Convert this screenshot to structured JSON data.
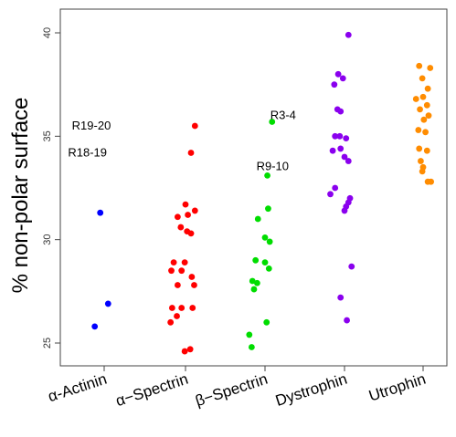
{
  "chart_data": {
    "type": "scatter",
    "title": "",
    "xlabel": "",
    "ylabel": "% non-polar surface",
    "ylim": [
      24,
      41
    ],
    "yticks": [
      "25",
      "30",
      "35",
      "40"
    ],
    "grid": false,
    "categories": [
      "α-Actinin",
      "α−Spectrin",
      "β−Spectrin",
      "Dystrophin",
      "Utrophin"
    ],
    "series": [
      {
        "color": "#0000ff",
        "points": [
          {
            "x": -0.05,
            "y": 31.3
          },
          {
            "x": 0.05,
            "y": 26.9
          },
          {
            "x": -0.12,
            "y": 25.8
          }
        ]
      },
      {
        "color": "#ff0000",
        "points": [
          {
            "x": 0.12,
            "y": 35.5
          },
          {
            "x": 0.07,
            "y": 34.2
          },
          {
            "x": 0.0,
            "y": 31.7
          },
          {
            "x": 0.12,
            "y": 31.4
          },
          {
            "x": -0.1,
            "y": 31.1
          },
          {
            "x": 0.03,
            "y": 31.2
          },
          {
            "x": -0.06,
            "y": 30.6
          },
          {
            "x": 0.02,
            "y": 30.4
          },
          {
            "x": 0.07,
            "y": 30.3
          },
          {
            "x": -0.15,
            "y": 28.9
          },
          {
            "x": -0.01,
            "y": 28.9
          },
          {
            "x": -0.18,
            "y": 28.5
          },
          {
            "x": -0.05,
            "y": 28.5
          },
          {
            "x": 0.08,
            "y": 28.2
          },
          {
            "x": -0.1,
            "y": 27.8
          },
          {
            "x": 0.11,
            "y": 27.8
          },
          {
            "x": -0.17,
            "y": 26.7
          },
          {
            "x": -0.05,
            "y": 26.7
          },
          {
            "x": 0.09,
            "y": 26.7
          },
          {
            "x": -0.11,
            "y": 26.3
          },
          {
            "x": -0.19,
            "y": 26.0
          },
          {
            "x": 0.06,
            "y": 24.7
          },
          {
            "x": -0.01,
            "y": 24.6
          }
        ]
      },
      {
        "color": "#00dd00",
        "points": [
          {
            "x": 0.09,
            "y": 35.7
          },
          {
            "x": 0.03,
            "y": 33.1
          },
          {
            "x": 0.04,
            "y": 31.5
          },
          {
            "x": -0.09,
            "y": 31.0
          },
          {
            "x": 0.0,
            "y": 30.1
          },
          {
            "x": 0.06,
            "y": 29.9
          },
          {
            "x": -0.12,
            "y": 29.0
          },
          {
            "x": 0.0,
            "y": 28.9
          },
          {
            "x": 0.05,
            "y": 28.6
          },
          {
            "x": -0.16,
            "y": 28.0
          },
          {
            "x": -0.1,
            "y": 27.9
          },
          {
            "x": -0.14,
            "y": 27.6
          },
          {
            "x": 0.02,
            "y": 26.0
          },
          {
            "x": -0.2,
            "y": 25.4
          },
          {
            "x": -0.17,
            "y": 24.8
          }
        ]
      },
      {
        "color": "#8a00ee",
        "points": [
          {
            "x": 0.05,
            "y": 39.9
          },
          {
            "x": -0.08,
            "y": 38.0
          },
          {
            "x": -0.02,
            "y": 37.8
          },
          {
            "x": -0.13,
            "y": 37.5
          },
          {
            "x": -0.09,
            "y": 36.3
          },
          {
            "x": -0.05,
            "y": 36.2
          },
          {
            "x": -0.12,
            "y": 35.0
          },
          {
            "x": -0.06,
            "y": 35.0
          },
          {
            "x": 0.02,
            "y": 34.9
          },
          {
            "x": -0.15,
            "y": 34.3
          },
          {
            "x": -0.05,
            "y": 34.4
          },
          {
            "x": 0.0,
            "y": 34.0
          },
          {
            "x": 0.05,
            "y": 33.8
          },
          {
            "x": -0.12,
            "y": 32.5
          },
          {
            "x": -0.18,
            "y": 32.2
          },
          {
            "x": 0.07,
            "y": 32.0
          },
          {
            "x": 0.05,
            "y": 31.8
          },
          {
            "x": 0.02,
            "y": 31.6
          },
          {
            "x": 0.0,
            "y": 31.4
          },
          {
            "x": 0.09,
            "y": 28.7
          },
          {
            "x": -0.05,
            "y": 27.2
          },
          {
            "x": 0.03,
            "y": 26.1
          }
        ]
      },
      {
        "color": "#ff8c00",
        "points": [
          {
            "x": -0.05,
            "y": 38.4
          },
          {
            "x": 0.09,
            "y": 38.3
          },
          {
            "x": -0.01,
            "y": 37.8
          },
          {
            "x": 0.06,
            "y": 37.3
          },
          {
            "x": -0.09,
            "y": 36.8
          },
          {
            "x": 0.0,
            "y": 36.9
          },
          {
            "x": 0.05,
            "y": 36.5
          },
          {
            "x": -0.04,
            "y": 36.3
          },
          {
            "x": 0.07,
            "y": 36.0
          },
          {
            "x": 0.01,
            "y": 35.8
          },
          {
            "x": -0.06,
            "y": 35.3
          },
          {
            "x": 0.03,
            "y": 35.2
          },
          {
            "x": -0.05,
            "y": 34.4
          },
          {
            "x": 0.05,
            "y": 34.3
          },
          {
            "x": -0.03,
            "y": 33.8
          },
          {
            "x": 0.0,
            "y": 33.5
          },
          {
            "x": 0.06,
            "y": 32.8
          },
          {
            "x": 0.1,
            "y": 32.8
          },
          {
            "x": -0.01,
            "y": 33.3
          }
        ]
      }
    ],
    "annotations": [
      {
        "text": "R19-20",
        "x": 0.12,
        "y": 35.5
      },
      {
        "text": "R18-19",
        "x": 0.07,
        "y": 34.2
      },
      {
        "text": "R3-4",
        "x": 2.09,
        "y": 35.7
      },
      {
        "text": "R9-10",
        "x": 2.03,
        "y": 33.1
      }
    ]
  }
}
